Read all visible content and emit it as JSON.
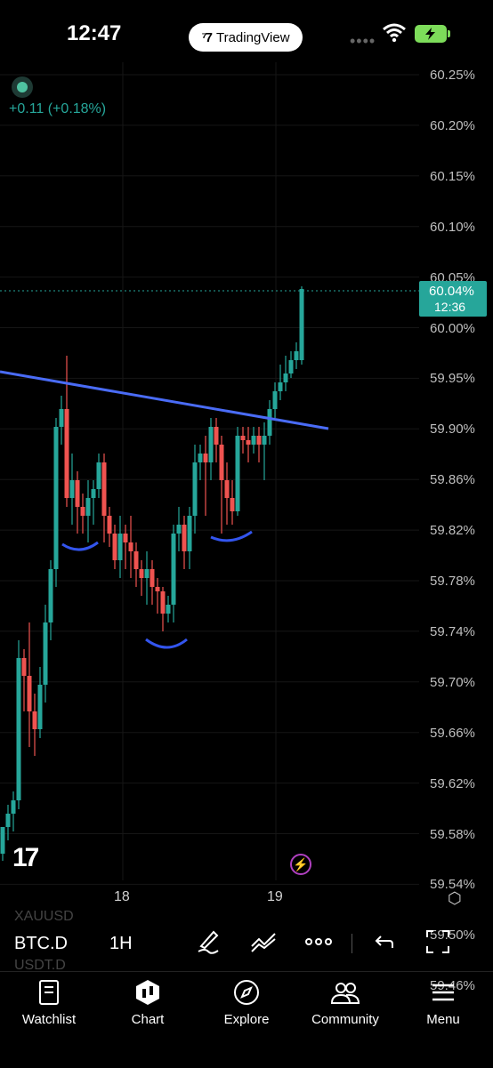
{
  "status_bar": {
    "time": "12:47",
    "app_pill": "TradingView"
  },
  "chart": {
    "change_text": "+0.11 (+0.18%)",
    "last_price_label": "60.04%",
    "last_price_time": "12:36",
    "price_axis": [
      "60.25%",
      "60.20%",
      "60.15%",
      "60.10%",
      "60.05%",
      "60.00%",
      "59.95%",
      "59.90%",
      "59.86%",
      "59.82%",
      "59.78%",
      "59.74%",
      "59.70%",
      "59.66%",
      "59.62%",
      "59.58%",
      "59.54%",
      "59.50%",
      "59.46%"
    ],
    "time_axis": [
      "18",
      "19"
    ],
    "colors": {
      "up": "#26a69a",
      "down": "#ef5350",
      "trendline": "#4a6cf7",
      "annotation": "#3355ee"
    }
  },
  "toolbar": {
    "ghost_top": "XAUUSD",
    "symbol": "BTC.D",
    "ghost_bottom": "USDT.D",
    "interval": "1H",
    "icons": [
      "pen-icon",
      "indicators-icon",
      "more-icon",
      "undo-icon",
      "fullscreen-icon"
    ]
  },
  "tabs": [
    {
      "label": "Watchlist",
      "icon": "book-icon"
    },
    {
      "label": "Chart",
      "icon": "chart-icon"
    },
    {
      "label": "Explore",
      "icon": "compass-icon"
    },
    {
      "label": "Community",
      "icon": "people-icon"
    },
    {
      "label": "Menu",
      "icon": "menu-icon"
    }
  ]
}
